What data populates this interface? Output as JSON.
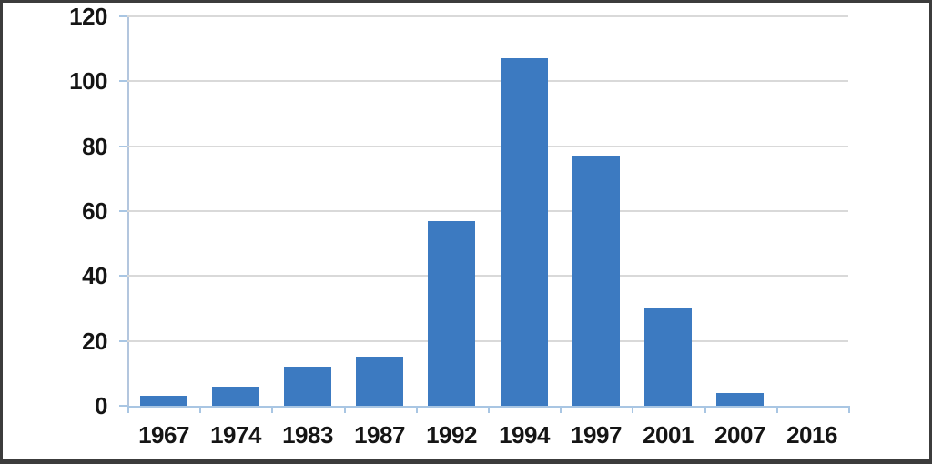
{
  "chart_data": {
    "type": "bar",
    "categories": [
      "1967",
      "1974",
      "1983",
      "1987",
      "1992",
      "1994",
      "1997",
      "2001",
      "2007",
      "2016"
    ],
    "values": [
      3,
      6,
      12,
      15,
      57,
      107,
      77,
      30,
      4,
      0
    ],
    "title": "",
    "xlabel": "",
    "ylabel": "",
    "ylim": [
      0,
      120
    ],
    "yticks": [
      0,
      20,
      40,
      60,
      80,
      100,
      120
    ],
    "grid": true,
    "legend": false,
    "colors": {
      "bar": "#3c7ac1",
      "gridline": "#d9d9d9",
      "axis": "#a9c6e3",
      "label_text": "#151515",
      "frame_border": "#3c3c3c",
      "background": "#ffffff"
    }
  }
}
